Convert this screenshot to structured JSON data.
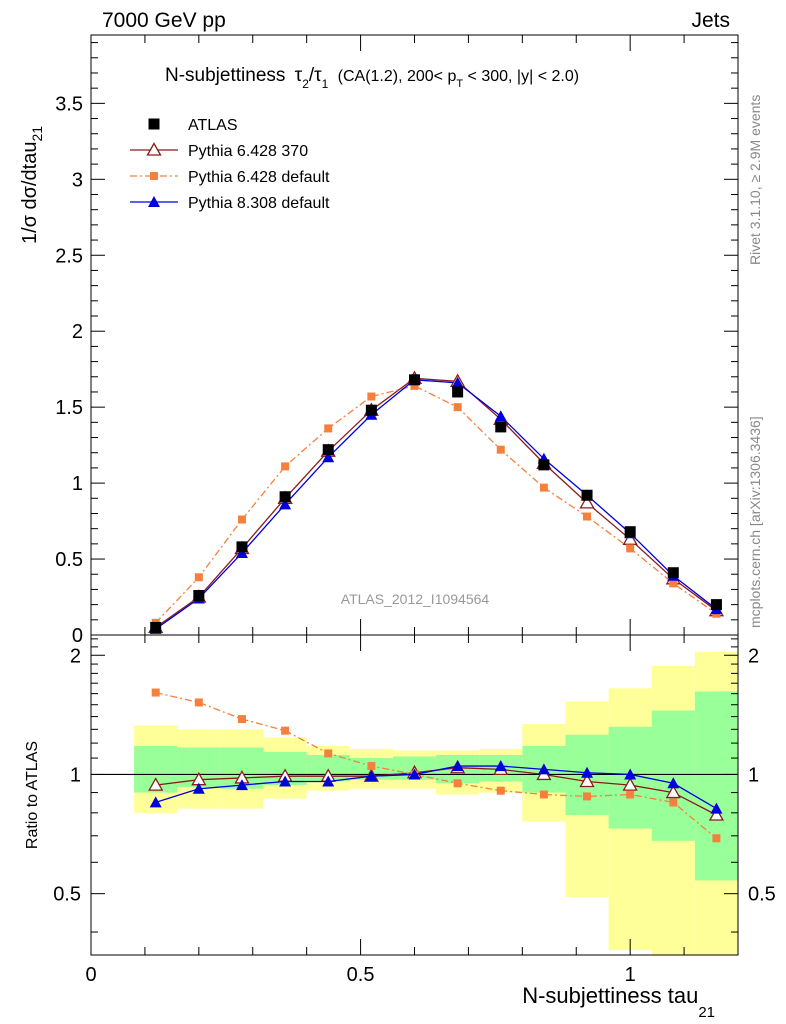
{
  "header": {
    "left": "7000 GeV pp",
    "right": "Jets"
  },
  "side_labels": {
    "rivet": "Rivet 3.1.10, ≥ 2.9M events",
    "mcplots": "mcplots.cern.ch [arXiv:1306.3436]"
  },
  "plot_title": {
    "main": "N-subjettiness",
    "tau_sym": "τ",
    "sub2": "2",
    "slash": "/",
    "sub1": "1",
    "selection_a": "(CA(1.2), 200< p",
    "selection_t": "T",
    "selection_b": " < 300, |y| < 2.0)"
  },
  "watermark": "ATLAS_2012_I1094564",
  "axes": {
    "ylabel_main": "1/σ dσ/dtau",
    "ylabel_main_sub": "21",
    "ylabel_ratio": "Ratio to ATLAS",
    "xlabel": "N-subjettiness tau",
    "xlabel_sub": "21"
  },
  "legend": [
    {
      "label": "ATLAS",
      "color": "#000000",
      "marker": "square-filled"
    },
    {
      "label": "Pythia 6.428 370",
      "color": "#8b1a1a",
      "marker": "triangle-open"
    },
    {
      "label": "Pythia 6.428 default",
      "color": "#f5803e",
      "marker": "square-small"
    },
    {
      "label": "Pythia 8.308 default",
      "color": "#0000dd",
      "marker": "triangle-filled"
    }
  ],
  "chart_data": [
    {
      "type": "line",
      "panel": "main",
      "xlim": [
        0,
        1.2
      ],
      "ylim": [
        0,
        3.95
      ],
      "x_ticks": [
        0,
        0.5,
        1
      ],
      "y_ticks": [
        0,
        0.5,
        1,
        1.5,
        2,
        2.5,
        3,
        3.5
      ],
      "y_tick_labels": [
        "0",
        "0.5",
        "1",
        "1.5",
        "2",
        "2.5",
        "3",
        "3.5"
      ],
      "x": [
        0.12,
        0.2,
        0.28,
        0.36,
        0.44,
        0.52,
        0.6,
        0.68,
        0.76,
        0.84,
        0.92,
        1.0,
        1.08,
        1.16
      ],
      "series": [
        {
          "name": "ATLAS",
          "values": [
            0.05,
            0.26,
            0.58,
            0.91,
            1.22,
            1.48,
            1.68,
            1.6,
            1.37,
            1.12,
            0.92,
            0.68,
            0.41,
            0.2
          ]
        },
        {
          "name": "Pythia 6.428 370",
          "values": [
            0.05,
            0.25,
            0.57,
            0.9,
            1.21,
            1.48,
            1.69,
            1.67,
            1.42,
            1.13,
            0.87,
            0.63,
            0.37,
            0.16
          ]
        },
        {
          "name": "Pythia 6.428 default",
          "values": [
            0.08,
            0.38,
            0.76,
            1.11,
            1.36,
            1.57,
            1.64,
            1.5,
            1.22,
            0.97,
            0.78,
            0.57,
            0.34,
            0.14
          ]
        },
        {
          "name": "Pythia 8.308 default",
          "values": [
            0.04,
            0.24,
            0.54,
            0.86,
            1.17,
            1.45,
            1.68,
            1.66,
            1.44,
            1.16,
            0.92,
            0.67,
            0.39,
            0.17
          ]
        }
      ]
    },
    {
      "type": "line",
      "panel": "ratio",
      "xlim": [
        0,
        1.2
      ],
      "ylim": [
        0.35,
        2.25
      ],
      "x_ticks": [
        0,
        0.5,
        1
      ],
      "x_tick_labels": [
        "0",
        "0.5",
        "1"
      ],
      "y_ticks": [
        0.5,
        1,
        2
      ],
      "y_tick_labels": [
        "0.5",
        "1",
        "2"
      ],
      "x": [
        0.12,
        0.2,
        0.28,
        0.36,
        0.44,
        0.52,
        0.6,
        0.68,
        0.76,
        0.84,
        0.92,
        1.0,
        1.08,
        1.16
      ],
      "bin_edges": [
        0.08,
        0.16,
        0.24,
        0.32,
        0.4,
        0.48,
        0.56,
        0.64,
        0.72,
        0.8,
        0.88,
        0.96,
        1.04,
        1.12,
        1.2
      ],
      "band_stat": [
        [
          0.9,
          1.18
        ],
        [
          0.93,
          1.17
        ],
        [
          0.92,
          1.17
        ],
        [
          0.94,
          1.14
        ],
        [
          0.96,
          1.12
        ],
        [
          0.97,
          1.1
        ],
        [
          0.97,
          1.11
        ],
        [
          0.95,
          1.12
        ],
        [
          0.96,
          1.12
        ],
        [
          0.9,
          1.18
        ],
        [
          0.79,
          1.26
        ],
        [
          0.73,
          1.32
        ],
        [
          0.68,
          1.45
        ],
        [
          0.54,
          1.62
        ]
      ],
      "band_total": [
        [
          0.8,
          1.33
        ],
        [
          0.82,
          1.3
        ],
        [
          0.82,
          1.3
        ],
        [
          0.87,
          1.24
        ],
        [
          0.91,
          1.18
        ],
        [
          0.92,
          1.16
        ],
        [
          0.92,
          1.15
        ],
        [
          0.89,
          1.15
        ],
        [
          0.9,
          1.16
        ],
        [
          0.76,
          1.34
        ],
        [
          0.49,
          1.53
        ],
        [
          0.36,
          1.65
        ],
        [
          0.35,
          1.88
        ],
        [
          0.35,
          2.04
        ]
      ],
      "series": [
        {
          "name": "Pythia 6.428 370",
          "values": [
            0.94,
            0.97,
            0.98,
            0.99,
            0.99,
            0.99,
            1.01,
            1.04,
            1.03,
            1.0,
            0.96,
            0.94,
            0.9,
            0.79
          ]
        },
        {
          "name": "Pythia 6.428 default",
          "values": [
            1.61,
            1.52,
            1.38,
            1.29,
            1.13,
            1.05,
            1.0,
            0.95,
            0.91,
            0.89,
            0.88,
            0.89,
            0.85,
            0.69
          ]
        },
        {
          "name": "Pythia 8.308 default",
          "values": [
            0.85,
            0.92,
            0.94,
            0.96,
            0.96,
            0.99,
            1.0,
            1.05,
            1.05,
            1.03,
            1.01,
            1.0,
            0.95,
            0.82
          ]
        }
      ],
      "band_colors": {
        "stat": "#99ff99",
        "total": "#ffff99"
      }
    }
  ]
}
